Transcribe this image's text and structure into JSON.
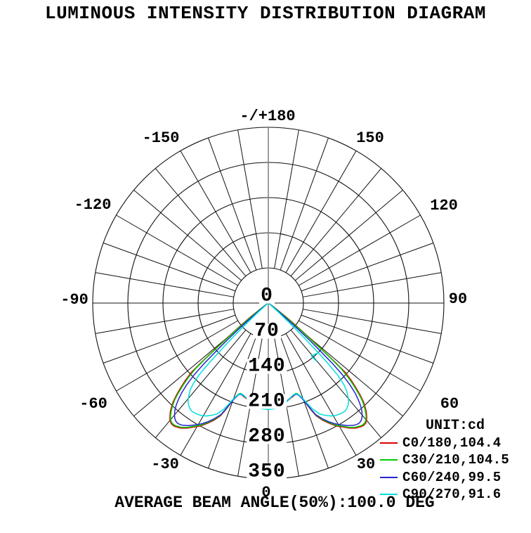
{
  "title": "LUMINOUS INTENSITY DISTRIBUTION DIAGRAM",
  "footer": {
    "average_beam_angle_note": "AVERAGE BEAM ANGLE(50%):100.0 DEG"
  },
  "legend": {
    "unit_label": "UNIT:cd",
    "entries": [
      {
        "label": "C0/180,104.4",
        "color": "#dd0000"
      },
      {
        "label": "C30/210,104.5",
        "color": "#00cc00"
      },
      {
        "label": "C60/240,99.5",
        "color": "#2525cc"
      },
      {
        "label": "C90/270,91.6",
        "color": "#00dede"
      }
    ]
  },
  "chart_data": {
    "type": "line",
    "subtype": "polar-luminous-intensity",
    "title": "LUMINOUS INTENSITY DISTRIBUTION DIAGRAM",
    "unit": "cd",
    "average_beam_angle_50pct_deg": 100.0,
    "grid": {
      "angle_step_deg": 10,
      "radial_step_cd": 70,
      "radial_max_cd": 350,
      "angle_zero": "bottom"
    },
    "radial_ticks": [
      0,
      70,
      140,
      210,
      280,
      350
    ],
    "angle_labels": [
      {
        "value": 180,
        "text": "-/+180"
      },
      {
        "value": -150,
        "text": "-150"
      },
      {
        "value": 150,
        "text": "150"
      },
      {
        "value": -120,
        "text": "-120"
      },
      {
        "value": 120,
        "text": "120"
      },
      {
        "value": -90,
        "text": "-90"
      },
      {
        "value": 90,
        "text": "90"
      },
      {
        "value": -60,
        "text": "-60"
      },
      {
        "value": 60,
        "text": "60"
      },
      {
        "value": -30,
        "text": "-30"
      },
      {
        "value": 30,
        "text": "30"
      },
      {
        "value": 0,
        "text": "0"
      }
    ],
    "series": [
      {
        "name": "C0/180",
        "beam_angle_50pct_deg": 104.4,
        "color": "#dd0000",
        "symmetric": true,
        "points": [
          [
            0,
            211
          ],
          [
            3,
            210
          ],
          [
            6,
            208
          ],
          [
            9,
            204
          ],
          [
            11,
            199
          ],
          [
            13,
            195
          ],
          [
            15,
            192
          ],
          [
            16,
            190
          ],
          [
            17,
            189
          ],
          [
            18,
            191
          ],
          [
            19,
            197
          ],
          [
            20,
            205
          ],
          [
            21,
            218
          ],
          [
            22,
            231
          ],
          [
            23,
            244
          ],
          [
            25,
            258
          ],
          [
            27,
            269
          ],
          [
            29,
            280
          ],
          [
            31,
            288
          ],
          [
            33,
            297
          ],
          [
            35,
            304
          ],
          [
            37,
            308
          ],
          [
            38,
            309
          ],
          [
            39,
            308
          ],
          [
            40,
            305
          ],
          [
            41,
            299
          ],
          [
            42,
            292
          ],
          [
            43,
            283
          ],
          [
            44,
            273
          ],
          [
            45,
            259
          ],
          [
            46,
            243
          ],
          [
            47,
            227
          ],
          [
            48,
            207
          ],
          [
            48.5,
            178
          ],
          [
            49,
            145
          ],
          [
            49.6,
            118
          ],
          [
            50.3,
            88
          ],
          [
            51,
            70
          ],
          [
            52,
            44
          ],
          [
            53,
            24
          ],
          [
            54,
            11
          ],
          [
            55,
            5
          ],
          [
            56,
            2
          ],
          [
            58,
            0
          ],
          [
            70,
            0
          ],
          [
            90,
            0
          ],
          [
            120,
            0
          ],
          [
            150,
            0
          ],
          [
            180,
            0
          ]
        ]
      },
      {
        "name": "C30/210",
        "beam_angle_50pct_deg": 104.5,
        "color": "#00cc00",
        "symmetric": true,
        "points": [
          [
            0,
            210
          ],
          [
            3,
            209
          ],
          [
            6,
            207
          ],
          [
            9,
            203
          ],
          [
            11,
            198
          ],
          [
            13,
            194
          ],
          [
            15,
            191
          ],
          [
            16,
            189
          ],
          [
            17,
            188
          ],
          [
            18,
            190
          ],
          [
            19,
            196
          ],
          [
            20,
            204
          ],
          [
            21,
            216
          ],
          [
            22,
            229
          ],
          [
            23,
            242
          ],
          [
            25,
            256
          ],
          [
            27,
            267
          ],
          [
            29,
            278
          ],
          [
            31,
            286
          ],
          [
            33,
            295
          ],
          [
            35,
            302
          ],
          [
            37,
            306
          ],
          [
            38,
            307
          ],
          [
            39,
            306
          ],
          [
            40,
            303
          ],
          [
            41,
            297
          ],
          [
            42,
            289
          ],
          [
            43,
            280
          ],
          [
            44,
            269
          ],
          [
            45,
            254
          ],
          [
            46,
            237
          ],
          [
            47,
            219
          ],
          [
            48,
            196
          ],
          [
            48.5,
            168
          ],
          [
            49,
            136
          ],
          [
            50,
            82
          ],
          [
            51,
            52
          ],
          [
            52,
            30
          ],
          [
            53,
            14
          ],
          [
            54,
            6
          ],
          [
            55,
            2
          ],
          [
            57,
            0
          ],
          [
            70,
            0
          ],
          [
            90,
            0
          ],
          [
            120,
            0
          ],
          [
            150,
            0
          ],
          [
            180,
            0
          ]
        ]
      },
      {
        "name": "C60/240",
        "beam_angle_50pct_deg": 99.5,
        "color": "#2525cc",
        "symmetric": true,
        "points": [
          [
            0,
            209
          ],
          [
            3,
            208
          ],
          [
            6,
            206
          ],
          [
            9,
            202
          ],
          [
            11,
            198
          ],
          [
            13,
            194
          ],
          [
            15,
            191
          ],
          [
            16,
            190
          ],
          [
            17,
            190
          ],
          [
            18,
            192
          ],
          [
            19,
            198
          ],
          [
            20,
            206
          ],
          [
            21,
            217
          ],
          [
            22,
            229
          ],
          [
            23,
            241
          ],
          [
            25,
            254
          ],
          [
            27,
            265
          ],
          [
            29,
            275
          ],
          [
            31,
            283
          ],
          [
            33,
            291
          ],
          [
            35,
            297
          ],
          [
            36,
            299
          ],
          [
            37,
            300
          ],
          [
            38,
            299
          ],
          [
            39,
            296
          ],
          [
            40,
            291
          ],
          [
            41,
            284
          ],
          [
            42,
            275
          ],
          [
            43,
            263
          ],
          [
            44,
            249
          ],
          [
            45,
            230
          ],
          [
            46,
            205
          ],
          [
            46.7,
            178
          ],
          [
            47.4,
            140
          ],
          [
            48,
            112
          ],
          [
            49,
            70
          ],
          [
            50,
            40
          ],
          [
            51,
            19
          ],
          [
            52,
            8
          ],
          [
            53,
            3
          ],
          [
            55,
            0
          ],
          [
            70,
            0
          ],
          [
            90,
            0
          ],
          [
            120,
            0
          ],
          [
            150,
            0
          ],
          [
            180,
            0
          ]
        ]
      },
      {
        "name": "C90/270",
        "beam_angle_50pct_deg": 91.6,
        "color": "#00dede",
        "symmetric": true,
        "points": [
          [
            0,
            212
          ],
          [
            3,
            211
          ],
          [
            6,
            209
          ],
          [
            9,
            204
          ],
          [
            11,
            199
          ],
          [
            13,
            194
          ],
          [
            15,
            190
          ],
          [
            16,
            189
          ],
          [
            17,
            189
          ],
          [
            18,
            191
          ],
          [
            19,
            196
          ],
          [
            20,
            203
          ],
          [
            21,
            212
          ],
          [
            22,
            222
          ],
          [
            23,
            231
          ],
          [
            25,
            244
          ],
          [
            27,
            251
          ],
          [
            29,
            257
          ],
          [
            31,
            261
          ],
          [
            33,
            263
          ],
          [
            35,
            264
          ],
          [
            36,
            263
          ],
          [
            37,
            261
          ],
          [
            38,
            258
          ],
          [
            39,
            254
          ],
          [
            40,
            248
          ],
          [
            41,
            241
          ],
          [
            42,
            232
          ],
          [
            43,
            219
          ],
          [
            44,
            198
          ],
          [
            44.6,
            172
          ],
          [
            45.2,
            140
          ],
          [
            46,
            100
          ],
          [
            47,
            58
          ],
          [
            48,
            30
          ],
          [
            49,
            14
          ],
          [
            50,
            6
          ],
          [
            51,
            2
          ],
          [
            53,
            0
          ],
          [
            70,
            0
          ],
          [
            90,
            0
          ],
          [
            120,
            0
          ],
          [
            150,
            0
          ],
          [
            180,
            0
          ]
        ]
      }
    ]
  }
}
